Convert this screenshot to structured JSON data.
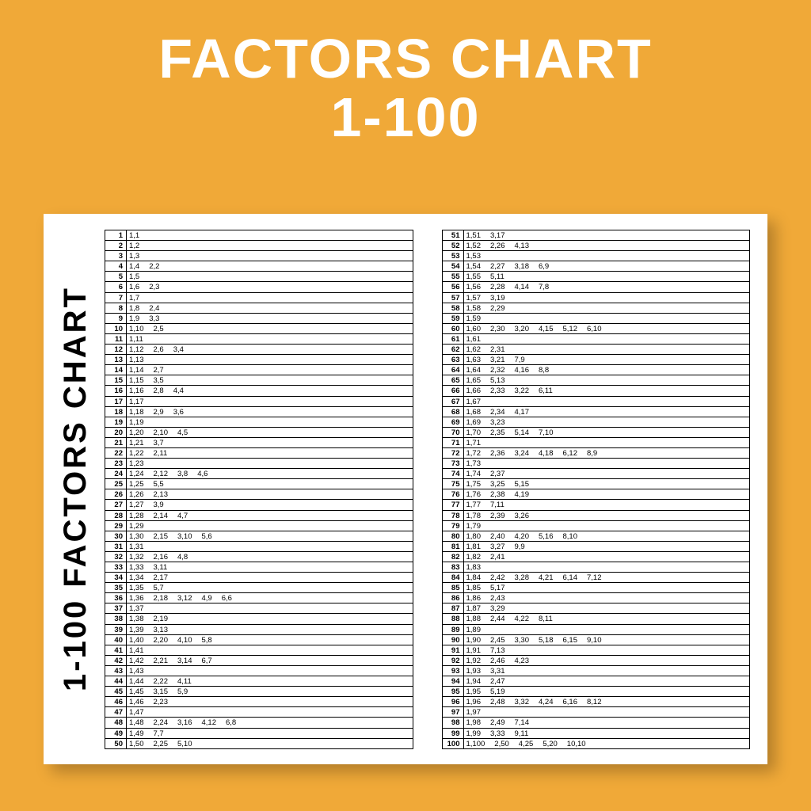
{
  "title_line1": "FACTORS CHART",
  "title_line2": "1-100",
  "side_label": "1-100 FACTORS CHART",
  "background_color": "#f0a938",
  "sheet_color": "#ffffff",
  "text_color": "#000000",
  "title_color": "#ffffff",
  "shadow_color": "rgba(0,0,0,0.25)",
  "title_fontsize": 70,
  "side_fontsize": 40,
  "row_fontsize": 9.5,
  "rows": [
    {
      "n": 1,
      "f": [
        "1,1"
      ]
    },
    {
      "n": 2,
      "f": [
        "1,2"
      ]
    },
    {
      "n": 3,
      "f": [
        "1,3"
      ]
    },
    {
      "n": 4,
      "f": [
        "1,4",
        "2,2"
      ]
    },
    {
      "n": 5,
      "f": [
        "1,5"
      ]
    },
    {
      "n": 6,
      "f": [
        "1,6",
        "2,3"
      ]
    },
    {
      "n": 7,
      "f": [
        "1,7"
      ]
    },
    {
      "n": 8,
      "f": [
        "1,8",
        "2,4"
      ]
    },
    {
      "n": 9,
      "f": [
        "1,9",
        "3,3"
      ]
    },
    {
      "n": 10,
      "f": [
        "1,10",
        "2,5"
      ]
    },
    {
      "n": 11,
      "f": [
        "1,11"
      ]
    },
    {
      "n": 12,
      "f": [
        "1,12",
        "2,6",
        "3,4"
      ]
    },
    {
      "n": 13,
      "f": [
        "1,13"
      ]
    },
    {
      "n": 14,
      "f": [
        "1,14",
        "2,7"
      ]
    },
    {
      "n": 15,
      "f": [
        "1,15",
        "3,5"
      ]
    },
    {
      "n": 16,
      "f": [
        "1,16",
        "2,8",
        "4,4"
      ]
    },
    {
      "n": 17,
      "f": [
        "1,17"
      ]
    },
    {
      "n": 18,
      "f": [
        "1,18",
        "2,9",
        "3,6"
      ]
    },
    {
      "n": 19,
      "f": [
        "1,19"
      ]
    },
    {
      "n": 20,
      "f": [
        "1,20",
        "2,10",
        "4,5"
      ]
    },
    {
      "n": 21,
      "f": [
        "1,21",
        "3,7"
      ]
    },
    {
      "n": 22,
      "f": [
        "1,22",
        "2,11"
      ]
    },
    {
      "n": 23,
      "f": [
        "1,23"
      ]
    },
    {
      "n": 24,
      "f": [
        "1,24",
        "2,12",
        "3,8",
        "4,6"
      ]
    },
    {
      "n": 25,
      "f": [
        "1,25",
        "5,5"
      ]
    },
    {
      "n": 26,
      "f": [
        "1,26",
        "2,13"
      ]
    },
    {
      "n": 27,
      "f": [
        "1,27",
        "3,9"
      ]
    },
    {
      "n": 28,
      "f": [
        "1,28",
        "2,14",
        "4,7"
      ]
    },
    {
      "n": 29,
      "f": [
        "1,29"
      ]
    },
    {
      "n": 30,
      "f": [
        "1,30",
        "2,15",
        "3,10",
        "5,6"
      ]
    },
    {
      "n": 31,
      "f": [
        "1,31"
      ]
    },
    {
      "n": 32,
      "f": [
        "1,32",
        "2,16",
        "4,8"
      ]
    },
    {
      "n": 33,
      "f": [
        "1,33",
        "3,11"
      ]
    },
    {
      "n": 34,
      "f": [
        "1,34",
        "2,17"
      ]
    },
    {
      "n": 35,
      "f": [
        "1,35",
        "5,7"
      ]
    },
    {
      "n": 36,
      "f": [
        "1,36",
        "2,18",
        "3,12",
        "4,9",
        "6,6"
      ]
    },
    {
      "n": 37,
      "f": [
        "1,37"
      ]
    },
    {
      "n": 38,
      "f": [
        "1,38",
        "2,19"
      ]
    },
    {
      "n": 39,
      "f": [
        "1,39",
        "3,13"
      ]
    },
    {
      "n": 40,
      "f": [
        "1,40",
        "2,20",
        "4,10",
        "5,8"
      ]
    },
    {
      "n": 41,
      "f": [
        "1,41"
      ]
    },
    {
      "n": 42,
      "f": [
        "1,42",
        "2,21",
        "3,14",
        "6,7"
      ]
    },
    {
      "n": 43,
      "f": [
        "1,43"
      ]
    },
    {
      "n": 44,
      "f": [
        "1,44",
        "2,22",
        "4,11"
      ]
    },
    {
      "n": 45,
      "f": [
        "1,45",
        "3,15",
        "5,9"
      ]
    },
    {
      "n": 46,
      "f": [
        "1,46",
        "2,23"
      ]
    },
    {
      "n": 47,
      "f": [
        "1,47"
      ]
    },
    {
      "n": 48,
      "f": [
        "1,48",
        "2,24",
        "3,16",
        "4,12",
        "6,8"
      ]
    },
    {
      "n": 49,
      "f": [
        "1,49",
        "7,7"
      ]
    },
    {
      "n": 50,
      "f": [
        "1,50",
        "2,25",
        "5,10"
      ]
    },
    {
      "n": 51,
      "f": [
        "1,51",
        "3,17"
      ]
    },
    {
      "n": 52,
      "f": [
        "1,52",
        "2,26",
        "4,13"
      ]
    },
    {
      "n": 53,
      "f": [
        "1,53"
      ]
    },
    {
      "n": 54,
      "f": [
        "1,54",
        "2,27",
        "3,18",
        "6,9"
      ]
    },
    {
      "n": 55,
      "f": [
        "1,55",
        "5,11"
      ]
    },
    {
      "n": 56,
      "f": [
        "1,56",
        "2,28",
        "4,14",
        "7,8"
      ]
    },
    {
      "n": 57,
      "f": [
        "1,57",
        "3,19"
      ]
    },
    {
      "n": 58,
      "f": [
        "1,58",
        "2,29"
      ]
    },
    {
      "n": 59,
      "f": [
        "1,59"
      ]
    },
    {
      "n": 60,
      "f": [
        "1,60",
        "2,30",
        "3,20",
        "4,15",
        "5,12",
        "6,10"
      ]
    },
    {
      "n": 61,
      "f": [
        "1,61"
      ]
    },
    {
      "n": 62,
      "f": [
        "1,62",
        "2,31"
      ]
    },
    {
      "n": 63,
      "f": [
        "1,63",
        "3,21",
        "7,9"
      ]
    },
    {
      "n": 64,
      "f": [
        "1,64",
        "2,32",
        "4,16",
        "8,8"
      ]
    },
    {
      "n": 65,
      "f": [
        "1,65",
        "5,13"
      ]
    },
    {
      "n": 66,
      "f": [
        "1,66",
        "2,33",
        "3,22",
        "6,11"
      ]
    },
    {
      "n": 67,
      "f": [
        "1,67"
      ]
    },
    {
      "n": 68,
      "f": [
        "1,68",
        "2,34",
        "4,17"
      ]
    },
    {
      "n": 69,
      "f": [
        "1,69",
        "3,23"
      ]
    },
    {
      "n": 70,
      "f": [
        "1,70",
        "2,35",
        "5,14",
        "7,10"
      ]
    },
    {
      "n": 71,
      "f": [
        "1,71"
      ]
    },
    {
      "n": 72,
      "f": [
        "1,72",
        "2,36",
        "3,24",
        "4,18",
        "6,12",
        "8,9"
      ]
    },
    {
      "n": 73,
      "f": [
        "1,73"
      ]
    },
    {
      "n": 74,
      "f": [
        "1,74",
        "2,37"
      ]
    },
    {
      "n": 75,
      "f": [
        "1,75",
        "3,25",
        "5,15"
      ]
    },
    {
      "n": 76,
      "f": [
        "1,76",
        "2,38",
        "4,19"
      ]
    },
    {
      "n": 77,
      "f": [
        "1,77",
        "7,11"
      ]
    },
    {
      "n": 78,
      "f": [
        "1,78",
        "2,39",
        "3,26"
      ]
    },
    {
      "n": 79,
      "f": [
        "1,79"
      ]
    },
    {
      "n": 80,
      "f": [
        "1,80",
        "2,40",
        "4,20",
        "5,16",
        "8,10"
      ]
    },
    {
      "n": 81,
      "f": [
        "1,81",
        "3,27",
        "9,9"
      ]
    },
    {
      "n": 82,
      "f": [
        "1,82",
        "2,41"
      ]
    },
    {
      "n": 83,
      "f": [
        "1,83"
      ]
    },
    {
      "n": 84,
      "f": [
        "1,84",
        "2,42",
        "3,28",
        "4,21",
        "6,14",
        "7,12"
      ]
    },
    {
      "n": 85,
      "f": [
        "1,85",
        "5,17"
      ]
    },
    {
      "n": 86,
      "f": [
        "1,86",
        "2,43"
      ]
    },
    {
      "n": 87,
      "f": [
        "1,87",
        "3,29"
      ]
    },
    {
      "n": 88,
      "f": [
        "1,88",
        "2,44",
        "4,22",
        "8,11"
      ]
    },
    {
      "n": 89,
      "f": [
        "1,89"
      ]
    },
    {
      "n": 90,
      "f": [
        "1,90",
        "2,45",
        "3,30",
        "5,18",
        "6,15",
        "9,10"
      ]
    },
    {
      "n": 91,
      "f": [
        "1,91",
        "7,13"
      ]
    },
    {
      "n": 92,
      "f": [
        "1,92",
        "2,46",
        "4,23"
      ]
    },
    {
      "n": 93,
      "f": [
        "1,93",
        "3,31"
      ]
    },
    {
      "n": 94,
      "f": [
        "1,94",
        "2,47"
      ]
    },
    {
      "n": 95,
      "f": [
        "1,95",
        "5,19"
      ]
    },
    {
      "n": 96,
      "f": [
        "1,96",
        "2,48",
        "3,32",
        "4,24",
        "6,16",
        "8,12"
      ]
    },
    {
      "n": 97,
      "f": [
        "1,97"
      ]
    },
    {
      "n": 98,
      "f": [
        "1,98",
        "2,49",
        "7,14"
      ]
    },
    {
      "n": 99,
      "f": [
        "1,99",
        "3,33",
        "9,11"
      ]
    },
    {
      "n": 100,
      "f": [
        "1,100",
        "2,50",
        "4,25",
        "5,20",
        "10,10"
      ]
    }
  ]
}
